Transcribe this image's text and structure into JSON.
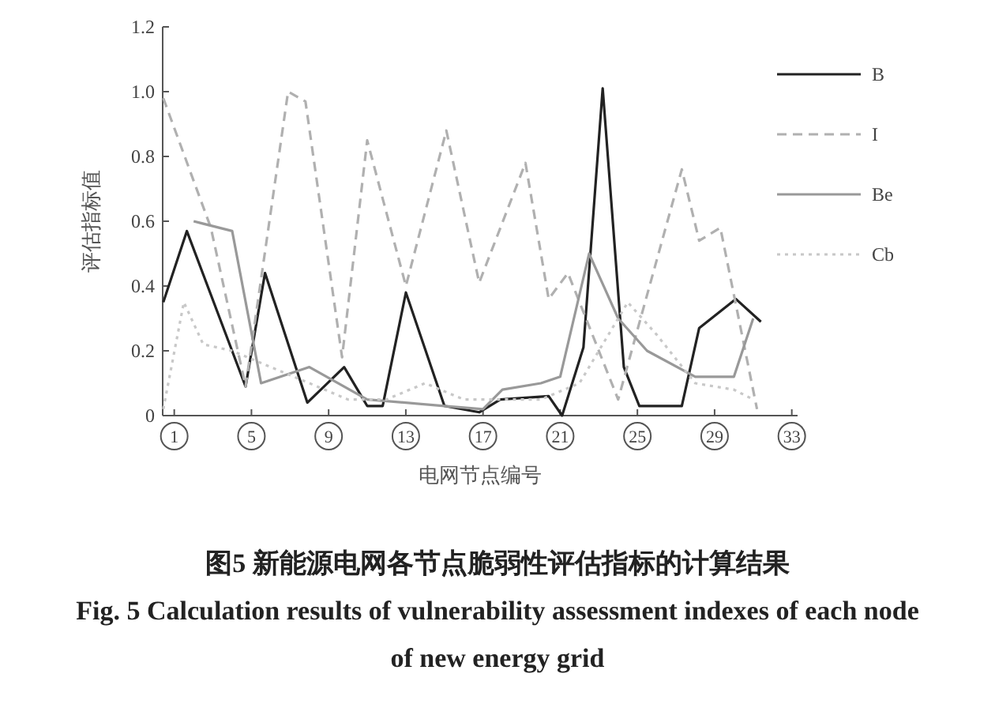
{
  "chart_data": {
    "type": "line",
    "title": "图5 新能源电网各节点脆弱性评估指标的计算结果",
    "subtitle": "Fig. 5 Calculation results of vulnerability assessment indexes of each node of new energy grid",
    "xlabel": "电网节点编号",
    "ylabel": "评估指标值",
    "xlim": [
      0.4,
      33.3
    ],
    "xticks": [
      1,
      5,
      9,
      13,
      17,
      21,
      25,
      29,
      33
    ],
    "ylim": [
      0,
      1.2
    ],
    "yticks": [
      0,
      0.2,
      0.4,
      0.6,
      0.8,
      {
        "value": 1.0,
        "label": "1.0"
      },
      1.2
    ],
    "legend": "right",
    "series": [
      {
        "name": "B",
        "color": "#222222",
        "line_style": "solid",
        "x": [
          0.43,
          1.65,
          4.7,
          5.7,
          7.9,
          9.8,
          11.0,
          11.8,
          13.0,
          15.0,
          16.8,
          17.9,
          20.4,
          21.1,
          22.2,
          23.2,
          24.3,
          25.1,
          27.3,
          28.2,
          30.1,
          31.4
        ],
        "values": [
          0.35,
          0.57,
          0.09,
          0.44,
          0.04,
          0.15,
          0.03,
          0.03,
          0.38,
          0.03,
          0.01,
          0.05,
          0.06,
          0.0,
          0.21,
          1.01,
          0.15,
          0.03,
          0.03,
          0.27,
          0.36,
          0.29
        ]
      },
      {
        "name": "I",
        "color": "#b0b0b0",
        "line_style": "dashed",
        "x": [
          0.43,
          2.9,
          4.7,
          6.9,
          7.8,
          9.7,
          11.0,
          13.0,
          15.1,
          16.8,
          19.2,
          20.4,
          21.4,
          24.0,
          27.3,
          28.2,
          29.3,
          31.2
        ],
        "values": [
          0.98,
          0.58,
          0.09,
          1.0,
          0.97,
          0.18,
          0.85,
          0.4,
          0.88,
          0.41,
          0.78,
          0.36,
          0.44,
          0.05,
          0.76,
          0.54,
          0.58,
          0.02
        ]
      },
      {
        "name": "Be",
        "color": "#999999",
        "line_style": "solid",
        "x": [
          2.0,
          4.0,
          5.5,
          8.0,
          11.0,
          15.0,
          17.0,
          18.0,
          20.0,
          21.0,
          22.5,
          24.0,
          25.5,
          28.0,
          30.0,
          31.0
        ],
        "values": [
          0.6,
          0.57,
          0.1,
          0.15,
          0.05,
          0.03,
          0.02,
          0.08,
          0.1,
          0.12,
          0.5,
          0.3,
          0.2,
          0.12,
          0.12,
          0.3
        ]
      },
      {
        "name": "Cb",
        "color": "#c8c8c8",
        "line_style": "dotted",
        "x": [
          0.43,
          1.5,
          2.5,
          4.0,
          6.0,
          8.0,
          10.0,
          12.0,
          14.0,
          16.0,
          18.0,
          20.0,
          22.0,
          24.5,
          26.0,
          28.0,
          30.0,
          31.0
        ],
        "values": [
          0.02,
          0.35,
          0.22,
          0.2,
          0.15,
          0.1,
          0.05,
          0.05,
          0.1,
          0.05,
          0.05,
          0.05,
          0.1,
          0.35,
          0.25,
          0.1,
          0.08,
          0.05
        ]
      }
    ]
  }
}
